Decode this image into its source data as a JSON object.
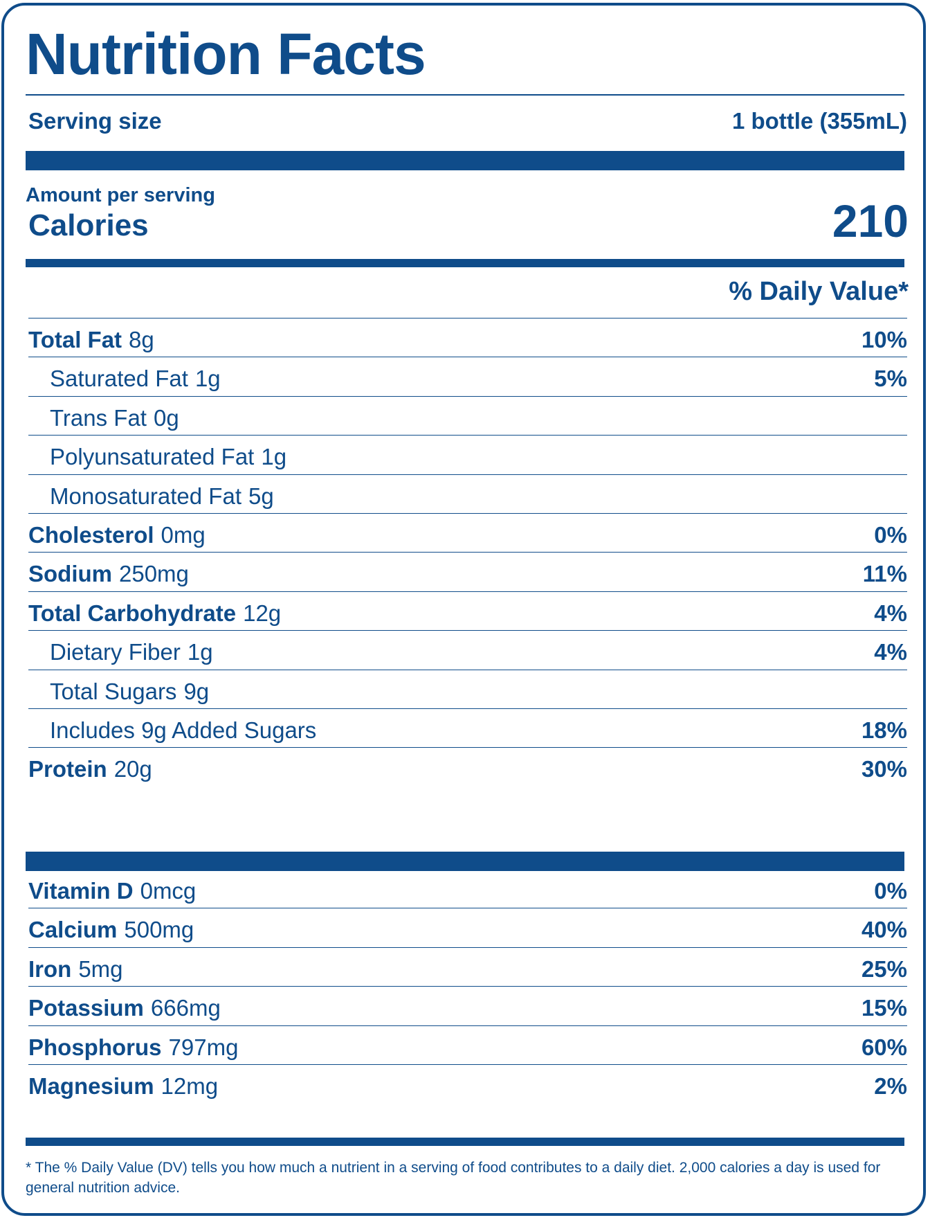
{
  "title": "Nutrition Facts",
  "serving": {
    "label": "Serving size",
    "value": "1 bottle (355mL)"
  },
  "calories": {
    "amount_per_serving": "Amount per serving",
    "label": "Calories",
    "value": "210"
  },
  "dv_header": "% Daily Value*",
  "nutrients": [
    {
      "name": "Total Fat",
      "amount": "8g",
      "dv": "10%",
      "bold": true
    },
    {
      "name": "Saturated Fat",
      "amount": "1g",
      "dv": "5%",
      "bold": false
    },
    {
      "name": "Trans Fat",
      "amount": "0g",
      "dv": "",
      "bold": false
    },
    {
      "name": "Polyunsaturated Fat",
      "amount": "1g",
      "dv": "",
      "bold": false
    },
    {
      "name": "Monosaturated Fat",
      "amount": "5g",
      "dv": "",
      "bold": false
    },
    {
      "name": "Cholesterol",
      "amount": "0mg",
      "dv": "0%",
      "bold": true
    },
    {
      "name": "Sodium",
      "amount": "250mg",
      "dv": "11%",
      "bold": true
    },
    {
      "name": "Total Carbohydrate",
      "amount": "12g",
      "dv": "4%",
      "bold": true
    },
    {
      "name": "Dietary Fiber",
      "amount": "1g",
      "dv": "4%",
      "bold": false
    },
    {
      "name": "Total Sugars",
      "amount": "9g",
      "dv": "",
      "bold": false
    },
    {
      "name": "Includes 9g Added Sugars",
      "amount": "",
      "dv": "18%",
      "bold": false
    },
    {
      "name": "Protein",
      "amount": "20g",
      "dv": "30%",
      "bold": true
    }
  ],
  "vitamins": [
    {
      "name": "Vitamin D",
      "amount": "0mcg",
      "dv": "0%"
    },
    {
      "name": "Calcium",
      "amount": "500mg",
      "dv": "40%"
    },
    {
      "name": "Iron",
      "amount": "5mg",
      "dv": "25%"
    },
    {
      "name": "Potassium",
      "amount": "666mg",
      "dv": "15%"
    },
    {
      "name": "Phosphorus",
      "amount": "797mg",
      "dv": "60%"
    },
    {
      "name": "Magnesium",
      "amount": "12mg",
      "dv": "2%"
    }
  ],
  "footnote": "* The % Daily Value (DV) tells you how much a nutrient in a serving of food contributes to a daily diet. 2,000 calories a day is used for general nutrition advice.",
  "colors": {
    "ink": "#0f4c8a",
    "background": "#ffffff"
  }
}
